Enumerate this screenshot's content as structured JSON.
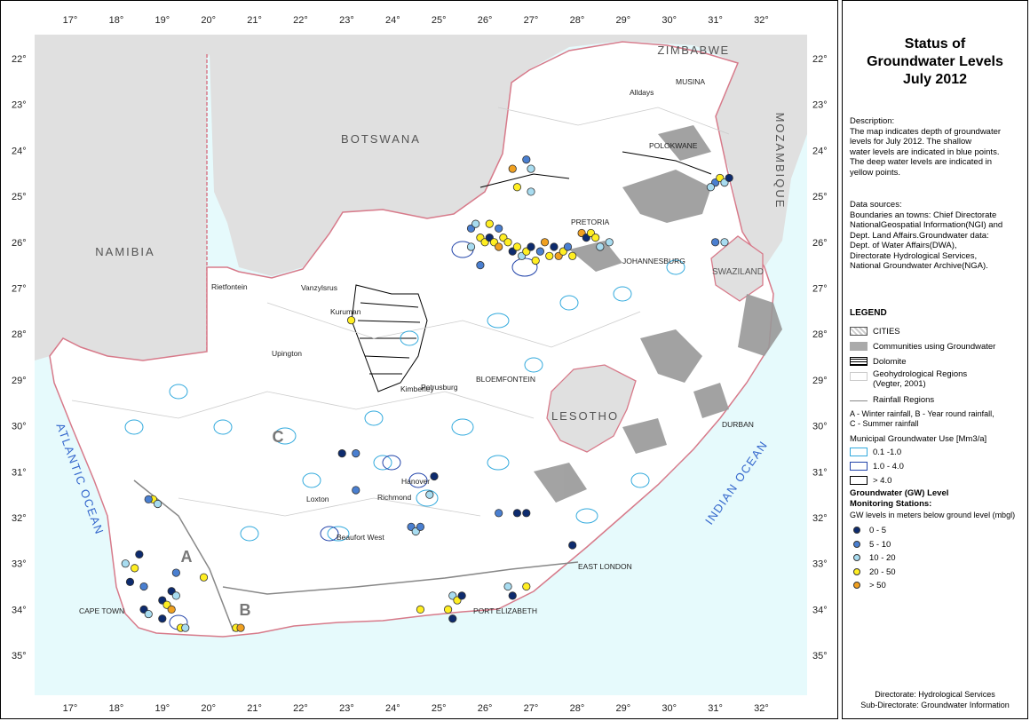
{
  "map": {
    "lon_ticks": [
      "17°",
      "18°",
      "19°",
      "20°",
      "21°",
      "22°",
      "23°",
      "24°",
      "25°",
      "26°",
      "27°",
      "28°",
      "29°",
      "30°",
      "31°",
      "32°"
    ],
    "lat_ticks": [
      "22°",
      "23°",
      "24°",
      "25°",
      "26°",
      "27°",
      "28°",
      "29°",
      "30°",
      "31°",
      "32°",
      "33°",
      "34°",
      "35°"
    ],
    "countries": {
      "zimbabwe": "ZIMBABWE",
      "botswana": "BOTSWANA",
      "namibia": "NAMIBIA",
      "mozambique": "MOZAMBIQUE",
      "lesotho": "LESOTHO",
      "swaziland": "SWAZILAND"
    },
    "oceans": {
      "atlantic": "ATLANTIC OCEAN",
      "indian": "INDIAN OCEAN"
    },
    "towns": {
      "alldays": "Alldays",
      "musina": "MUSINA",
      "polokwane": "POLOKWANE",
      "pretoria": "PRETORIA",
      "johannesburg": "JOHANNESBURG",
      "rietfontein": "Rietfontein",
      "vanzylsrus": "Vanzylsrus",
      "kuruman": "Kuruman",
      "upington": "Upington",
      "kimberley": "Kimberley",
      "petrusburg": "Petrusburg",
      "bloemfontein": "BLOEMFONTEIN",
      "durban": "DURBAN",
      "hanover": "Hanover",
      "loxton": "Loxton",
      "richmond": "Richmond",
      "beaufort_west": "Beaufort West",
      "east_london": "EAST LONDON",
      "port_elizabeth": "PORT ELIZABETH",
      "cape_town": "CAPE TOWN"
    },
    "regions": {
      "a": "A",
      "b": "B",
      "c": "C"
    },
    "colors": {
      "land": "#e0e0e0",
      "ocean": "#e6fafc",
      "sa": "#ffffff",
      "border": "#d77a8a",
      "rivers": "#3399cc"
    },
    "stations": [
      {
        "lon": 18.8,
        "lat": 31.6,
        "c": "y"
      },
      {
        "lon": 18.9,
        "lat": 31.7,
        "c": "l"
      },
      {
        "lon": 18.7,
        "lat": 31.6,
        "c": "m"
      },
      {
        "lon": 18.2,
        "lat": 33.0,
        "c": "l"
      },
      {
        "lon": 18.4,
        "lat": 33.1,
        "c": "y"
      },
      {
        "lon": 18.5,
        "lat": 32.8,
        "c": "d"
      },
      {
        "lon": 18.3,
        "lat": 33.4,
        "c": "d"
      },
      {
        "lon": 18.6,
        "lat": 33.5,
        "c": "m"
      },
      {
        "lon": 18.6,
        "lat": 34.0,
        "c": "d"
      },
      {
        "lon": 18.7,
        "lat": 34.1,
        "c": "l"
      },
      {
        "lon": 19.0,
        "lat": 33.8,
        "c": "d"
      },
      {
        "lon": 19.2,
        "lat": 33.6,
        "c": "d"
      },
      {
        "lon": 19.3,
        "lat": 33.7,
        "c": "l"
      },
      {
        "lon": 19.1,
        "lat": 33.9,
        "c": "y"
      },
      {
        "lon": 19.2,
        "lat": 34.0,
        "c": "o"
      },
      {
        "lon": 19.4,
        "lat": 34.4,
        "c": "y"
      },
      {
        "lon": 19.5,
        "lat": 34.4,
        "c": "l"
      },
      {
        "lon": 19.9,
        "lat": 33.3,
        "c": "y"
      },
      {
        "lon": 19.3,
        "lat": 33.2,
        "c": "m"
      },
      {
        "lon": 19.0,
        "lat": 34.2,
        "c": "d"
      },
      {
        "lon": 20.6,
        "lat": 34.4,
        "c": "y"
      },
      {
        "lon": 20.7,
        "lat": 34.4,
        "c": "o"
      },
      {
        "lon": 22.9,
        "lat": 30.6,
        "c": "d"
      },
      {
        "lon": 23.2,
        "lat": 30.6,
        "c": "m"
      },
      {
        "lon": 23.2,
        "lat": 31.4,
        "c": "m"
      },
      {
        "lon": 23.1,
        "lat": 27.7,
        "c": "y"
      },
      {
        "lon": 24.4,
        "lat": 32.2,
        "c": "m"
      },
      {
        "lon": 24.5,
        "lat": 32.3,
        "c": "l"
      },
      {
        "lon": 24.6,
        "lat": 32.2,
        "c": "m"
      },
      {
        "lon": 24.9,
        "lat": 31.1,
        "c": "d"
      },
      {
        "lon": 24.8,
        "lat": 31.5,
        "c": "l"
      },
      {
        "lon": 25.3,
        "lat": 33.7,
        "c": "l"
      },
      {
        "lon": 25.4,
        "lat": 33.8,
        "c": "y"
      },
      {
        "lon": 25.5,
        "lat": 33.7,
        "c": "d"
      },
      {
        "lon": 25.2,
        "lat": 34.0,
        "c": "y"
      },
      {
        "lon": 25.3,
        "lat": 34.2,
        "c": "d"
      },
      {
        "lon": 24.6,
        "lat": 34.0,
        "c": "y"
      },
      {
        "lon": 26.3,
        "lat": 31.9,
        "c": "m"
      },
      {
        "lon": 26.7,
        "lat": 31.9,
        "c": "d"
      },
      {
        "lon": 26.9,
        "lat": 31.9,
        "c": "d"
      },
      {
        "lon": 26.5,
        "lat": 33.5,
        "c": "l"
      },
      {
        "lon": 26.6,
        "lat": 33.7,
        "c": "d"
      },
      {
        "lon": 26.9,
        "lat": 33.5,
        "c": "y"
      },
      {
        "lon": 27.9,
        "lat": 32.6,
        "c": "d"
      },
      {
        "lon": 26.6,
        "lat": 24.4,
        "c": "o"
      },
      {
        "lon": 26.7,
        "lat": 24.8,
        "c": "y"
      },
      {
        "lon": 26.9,
        "lat": 24.2,
        "c": "m"
      },
      {
        "lon": 27.0,
        "lat": 24.4,
        "c": "l"
      },
      {
        "lon": 27.0,
        "lat": 24.9,
        "c": "l"
      },
      {
        "lon": 25.7,
        "lat": 25.7,
        "c": "m"
      },
      {
        "lon": 25.9,
        "lat": 25.9,
        "c": "y"
      },
      {
        "lon": 26.0,
        "lat": 26.0,
        "c": "y"
      },
      {
        "lon": 26.1,
        "lat": 25.9,
        "c": "d"
      },
      {
        "lon": 26.2,
        "lat": 26.0,
        "c": "y"
      },
      {
        "lon": 26.3,
        "lat": 26.1,
        "c": "o"
      },
      {
        "lon": 26.4,
        "lat": 25.9,
        "c": "y"
      },
      {
        "lon": 26.5,
        "lat": 26.0,
        "c": "y"
      },
      {
        "lon": 26.6,
        "lat": 26.2,
        "c": "d"
      },
      {
        "lon": 26.7,
        "lat": 26.1,
        "c": "y"
      },
      {
        "lon": 26.8,
        "lat": 26.3,
        "c": "l"
      },
      {
        "lon": 26.9,
        "lat": 26.2,
        "c": "y"
      },
      {
        "lon": 27.0,
        "lat": 26.1,
        "c": "d"
      },
      {
        "lon": 27.1,
        "lat": 26.4,
        "c": "y"
      },
      {
        "lon": 27.2,
        "lat": 26.2,
        "c": "m"
      },
      {
        "lon": 27.3,
        "lat": 26.0,
        "c": "o"
      },
      {
        "lon": 27.4,
        "lat": 26.3,
        "c": "y"
      },
      {
        "lon": 27.5,
        "lat": 26.1,
        "c": "d"
      },
      {
        "lon": 27.6,
        "lat": 26.3,
        "c": "o"
      },
      {
        "lon": 27.7,
        "lat": 26.2,
        "c": "y"
      },
      {
        "lon": 27.8,
        "lat": 26.1,
        "c": "m"
      },
      {
        "lon": 27.9,
        "lat": 26.3,
        "c": "y"
      },
      {
        "lon": 28.1,
        "lat": 25.8,
        "c": "o"
      },
      {
        "lon": 28.2,
        "lat": 25.9,
        "c": "d"
      },
      {
        "lon": 28.3,
        "lat": 25.8,
        "c": "y"
      },
      {
        "lon": 28.4,
        "lat": 25.9,
        "c": "y"
      },
      {
        "lon": 28.5,
        "lat": 26.1,
        "c": "l"
      },
      {
        "lon": 25.9,
        "lat": 26.5,
        "c": "m"
      },
      {
        "lon": 25.8,
        "lat": 25.6,
        "c": "l"
      },
      {
        "lon": 25.7,
        "lat": 26.1,
        "c": "l"
      },
      {
        "lon": 26.1,
        "lat": 25.6,
        "c": "y"
      },
      {
        "lon": 26.3,
        "lat": 25.7,
        "c": "m"
      },
      {
        "lon": 28.7,
        "lat": 26.0,
        "c": "l"
      },
      {
        "lon": 31.0,
        "lat": 24.7,
        "c": "m"
      },
      {
        "lon": 31.1,
        "lat": 24.6,
        "c": "y"
      },
      {
        "lon": 31.2,
        "lat": 24.7,
        "c": "l"
      },
      {
        "lon": 31.3,
        "lat": 24.6,
        "c": "d"
      },
      {
        "lon": 30.9,
        "lat": 24.8,
        "c": "l"
      },
      {
        "lon": 31.0,
        "lat": 26.0,
        "c": "m"
      },
      {
        "lon": 31.2,
        "lat": 26.0,
        "c": "l"
      }
    ]
  },
  "side": {
    "title": [
      "Status of",
      "Groundwater Levels",
      "July 2012"
    ],
    "description": [
      "Description:",
      "The map indicates depth of groundwater",
      "levels for July 2012. The shallow",
      "water levels are indicated in blue points.",
      "The deep water levels are indicated in",
      "yellow points."
    ],
    "sources": [
      "Data sources:",
      "Boundaries an towns: Chief Directorate",
      "NationalGeospatial Information(NGI) and",
      "Dept. Land Affairs.Groundwater data:",
      "Dept. of Water Affairs(DWA),",
      "Directorate Hydrological Services,",
      "National Groundwater Archive(NGA)."
    ],
    "legend_title": "LEGEND",
    "cities": "CITIES",
    "communities": "Communities using Groundwater",
    "dolomite": "Dolomite",
    "geohydro": [
      "Geohydrological Regions",
      "(Vegter, 2001)"
    ],
    "rainfall": "Rainfall Regions",
    "rainfall_desc": [
      "A - Winter rainfall, B - Year round rainfall,",
      "C - Summer rainfall"
    ],
    "municipal": "Municipal Groundwater Use [Mm3/a]",
    "mun_items": [
      "0.1 -1.0",
      "1.0 - 4.0",
      "> 4.0"
    ],
    "gw_head": [
      "Groundwater (GW) Level",
      "Monitoring Stations:"
    ],
    "gw_sub": "GW levels in meters below ground level (mbgl)",
    "gw_items": [
      {
        "label": "0 - 5",
        "color": "#0d2b6e"
      },
      {
        "label": "5 - 10",
        "color": "#4a7fd0"
      },
      {
        "label": "10 - 20",
        "color": "#a8dcf0"
      },
      {
        "label": "20 - 50",
        "color": "#ffee22"
      },
      {
        "label": "> 50",
        "color": "#f0a020"
      }
    ],
    "footer": [
      "Directorate: Hydrological Services",
      "Sub-Directorate: Groundwater Information"
    ]
  }
}
